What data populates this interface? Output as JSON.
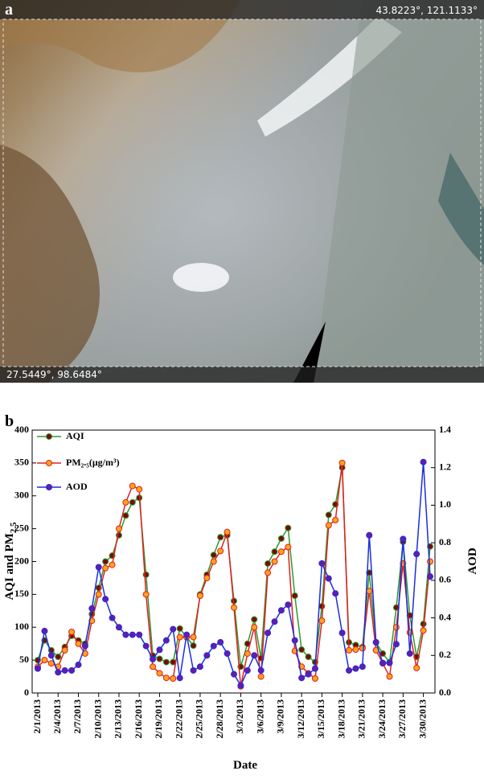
{
  "image": {
    "label": "a",
    "coord_top": "43.8223°, 121.1133°",
    "coord_bottom": "27.5449°, 98.6484°"
  },
  "chart_data": {
    "type": "line",
    "panel_label": "b",
    "xlabel": "Date",
    "ylabel": "AQI and PM",
    "ylabel_sub": "2.5",
    "y2label": "AOD",
    "categories": [
      "2/1/2013",
      null,
      null,
      "2/4/2013",
      null,
      null,
      "2/7/2013",
      null,
      null,
      "2/10/2013",
      null,
      null,
      "2/13/2013",
      null,
      null,
      "2/16/2013",
      null,
      null,
      "2/19/2013",
      null,
      null,
      "2/22/2013",
      null,
      null,
      "2/25/2013",
      null,
      null,
      "2/28/2013",
      null,
      null,
      "3/3/2013",
      null,
      null,
      "3/6/2013",
      null,
      null,
      "3/9/2013",
      null,
      null,
      "3/12/2013",
      null,
      null,
      "3/15/2013",
      null,
      null,
      "3/18/2013",
      null,
      null,
      "3/21/2013",
      null,
      null,
      "3/24/2013",
      null,
      null,
      "3/27/2013",
      null,
      null,
      "3/30/2013",
      null
    ],
    "series": [
      {
        "name": "AQI",
        "color": "#2e9a2e",
        "marker": "#7a0a0a",
        "values": [
          50,
          80,
          65,
          55,
          70,
          87,
          80,
          75,
          120,
          160,
          200,
          209,
          240,
          270,
          290,
          297,
          180,
          57,
          52,
          47,
          47,
          98,
          85,
          72,
          150,
          180,
          210,
          237,
          240,
          140,
          40,
          75,
          112,
          53,
          197,
          215,
          235,
          251,
          148,
          66,
          55,
          47,
          132,
          271,
          287,
          343,
          77,
          73,
          70,
          183,
          77,
          60,
          47,
          130,
          230,
          118,
          55,
          105,
          223
        ]
      },
      {
        "name": "PM₂.₅(μg/m³)",
        "color": "#e02020",
        "marker": "#ffa31a",
        "values": [
          40,
          50,
          45,
          40,
          65,
          93,
          75,
          60,
          110,
          150,
          190,
          195,
          250,
          290,
          315,
          310,
          150,
          40,
          30,
          23,
          22,
          85,
          85,
          85,
          148,
          175,
          200,
          216,
          245,
          130,
          10,
          60,
          100,
          25,
          183,
          200,
          215,
          222,
          64,
          40,
          30,
          22,
          110,
          255,
          263,
          350,
          65,
          66,
          68,
          155,
          65,
          45,
          25,
          100,
          197,
          92,
          38,
          95,
          200
        ]
      },
      {
        "name": "AOD",
        "color": "#1a2ee0",
        "marker": "#6a1aa8",
        "axis": "y2",
        "values": [
          0.13,
          0.33,
          0.2,
          0.11,
          0.12,
          0.12,
          0.15,
          0.25,
          0.45,
          0.67,
          0.5,
          0.4,
          0.35,
          0.31,
          0.31,
          0.31,
          0.25,
          0.18,
          0.23,
          0.28,
          0.34,
          0.08,
          0.31,
          0.12,
          0.14,
          0.2,
          0.25,
          0.27,
          0.21,
          0.1,
          0.04,
          0.12,
          0.2,
          0.12,
          0.32,
          0.38,
          0.44,
          0.47,
          0.28,
          0.08,
          0.1,
          0.13,
          0.69,
          0.61,
          0.53,
          0.32,
          0.12,
          0.13,
          0.14,
          0.84,
          0.27,
          0.16,
          0.16,
          0.26,
          0.82,
          0.21,
          0.74,
          1.23,
          0.62
        ]
      }
    ],
    "ylim": [
      0,
      400
    ],
    "yticks": [
      0,
      50,
      100,
      150,
      200,
      250,
      300,
      350,
      400
    ],
    "y2lim": [
      0,
      1.4
    ],
    "y2ticks": [
      {
        "value": 0,
        "label": "0.0"
      },
      0.2,
      0.4,
      0.6,
      0.8,
      {
        "value": 1,
        "label": "1.0"
      },
      1.2,
      1.4
    ],
    "legend": "top-left"
  }
}
